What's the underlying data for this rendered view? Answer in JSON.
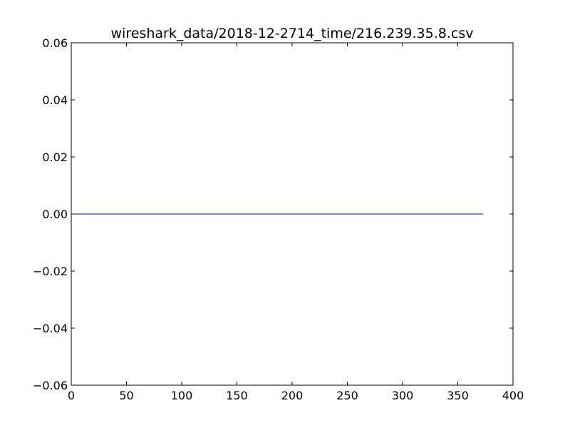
{
  "chart_data": {
    "type": "line",
    "title": "wireshark_data/2018-12-2714_time/216.239.35.8.csv",
    "xlabel": "",
    "ylabel": "",
    "xlim": [
      0,
      400
    ],
    "ylim": [
      -0.06,
      0.06
    ],
    "x_ticks": [
      0,
      50,
      100,
      150,
      200,
      250,
      300,
      350,
      400
    ],
    "y_ticks": [
      -0.06,
      -0.04,
      -0.02,
      0.0,
      0.02,
      0.04,
      0.06
    ],
    "x_tick_labels": [
      "0",
      "50",
      "100",
      "150",
      "200",
      "250",
      "300",
      "350",
      "400"
    ],
    "y_tick_labels": [
      "−0.06",
      "−0.04",
      "−0.02",
      "0.00",
      "0.02",
      "0.04",
      "0.06"
    ],
    "grid": false,
    "series": [
      {
        "color": "#0000ff",
        "x": [
          0,
          373
        ],
        "y": [
          0,
          0
        ]
      }
    ]
  }
}
